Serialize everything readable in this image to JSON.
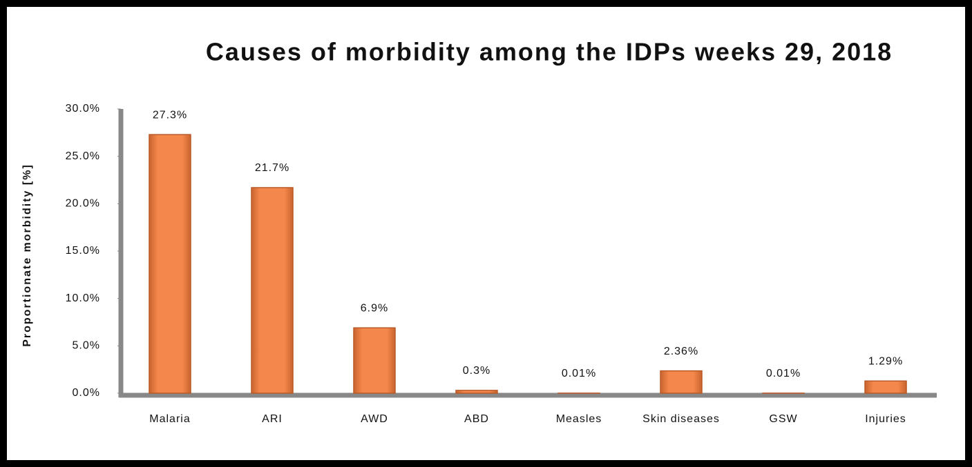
{
  "chart_data": {
    "type": "bar",
    "title": "Causes of morbidity among the IDPs weeks 29, 2018",
    "y_label": "Proportionate morbidity [%]",
    "categories": [
      "Malaria",
      "ARI",
      "AWD",
      "ABD",
      "Measles",
      "Skin diseases",
      "GSW",
      "Injuries"
    ],
    "values": [
      27.3,
      21.7,
      6.9,
      0.3,
      0.01,
      2.36,
      0.01,
      1.29
    ],
    "value_labels": [
      "27.3%",
      "21.7%",
      "6.9%",
      "0.3%",
      "0.01%",
      "2.36%",
      "0.01%",
      "1.29%"
    ],
    "color": "#f4874b",
    "ylim": [
      0,
      30
    ],
    "yticks": [
      {
        "value": 0,
        "label": "0.0%"
      },
      {
        "value": 5,
        "label": "5.0%"
      },
      {
        "value": 10,
        "label": "10.0%"
      },
      {
        "value": 15,
        "label": "15.0%"
      },
      {
        "value": 20,
        "label": "20.0%"
      },
      {
        "value": 25,
        "label": "25.0%"
      },
      {
        "value": 30,
        "label": "30.0%"
      }
    ],
    "grid": false
  }
}
